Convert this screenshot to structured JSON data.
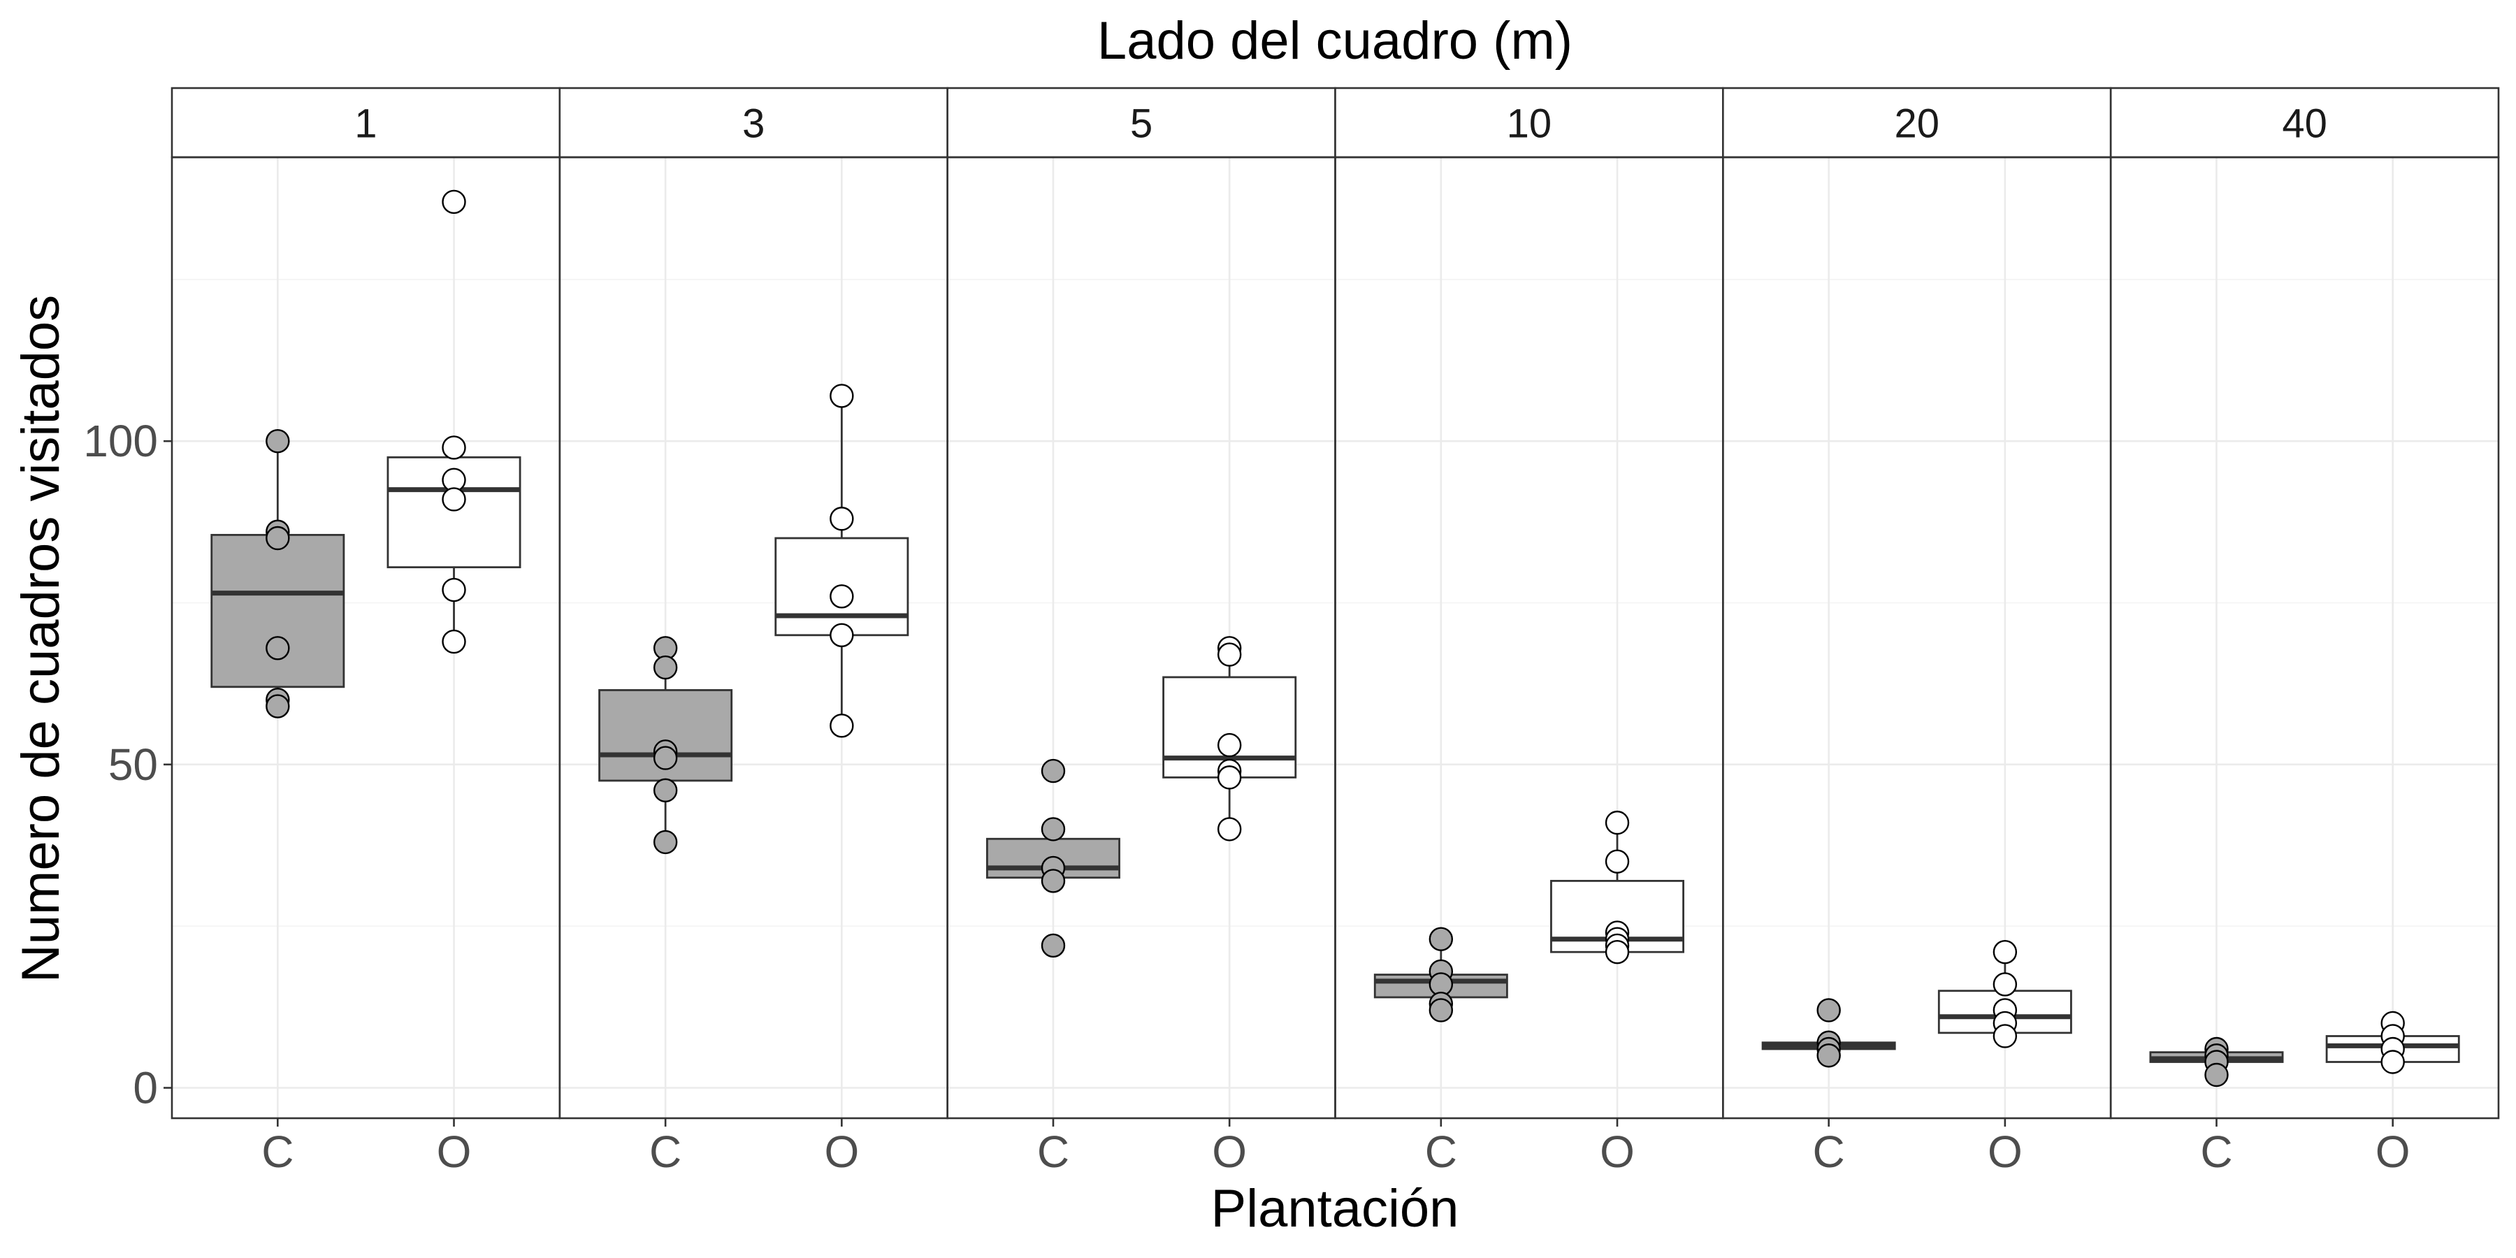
{
  "chart_data": {
    "type": "box",
    "title": "Lado del cuadro (m)",
    "xlabel": "Plantación",
    "ylabel": "Numero de cuadros visitados",
    "categories": [
      "C",
      "O"
    ],
    "yticks": [
      0,
      50,
      100
    ],
    "ylim": [
      -4.7,
      143.9
    ],
    "grid": true,
    "colors": {
      "C": "#A9A9A9",
      "O": "#FFFFFF",
      "outline": "#333333"
    },
    "panels": [
      {
        "label": "1",
        "groups": [
          {
            "category": "C",
            "box": {
              "ymin": 59,
              "lower": 62,
              "median": 76.5,
              "upper": 85.5,
              "ymax": 100
            },
            "points": [
              100,
              86,
              85,
              68,
              60,
              59
            ]
          },
          {
            "category": "O",
            "box": {
              "ymin": 69,
              "lower": 80.5,
              "median": 92.5,
              "upper": 97.5,
              "ymax": 99
            },
            "points": [
              137,
              99,
              94,
              91,
              77,
              69
            ]
          }
        ]
      },
      {
        "label": "3",
        "groups": [
          {
            "category": "C",
            "box": {
              "ymin": 38,
              "lower": 47.5,
              "median": 51.5,
              "upper": 61.5,
              "ymax": 68
            },
            "points": [
              68,
              65,
              52,
              51,
              46,
              38
            ]
          },
          {
            "category": "O",
            "box": {
              "ymin": 56,
              "lower": 70,
              "median": 73,
              "upper": 85,
              "ymax": 107
            },
            "points": [
              107,
              88,
              76,
              70,
              56
            ]
          }
        ]
      },
      {
        "label": "5",
        "groups": [
          {
            "category": "C",
            "box": {
              "ymin": 32,
              "lower": 32.5,
              "median": 34,
              "upper": 38.5,
              "ymax": 40
            },
            "points": [
              49,
              40,
              34,
              32,
              22
            ]
          },
          {
            "category": "O",
            "box": {
              "ymin": 40,
              "lower": 48,
              "median": 51,
              "upper": 63.5,
              "ymax": 68
            },
            "points": [
              68,
              67,
              53,
              49,
              48,
              40
            ]
          }
        ]
      },
      {
        "label": "10",
        "groups": [
          {
            "category": "C",
            "box": {
              "ymin": 12,
              "lower": 14,
              "median": 16.5,
              "upper": 17.5,
              "ymax": 23
            },
            "points": [
              23,
              18,
              16,
              13,
              12
            ]
          },
          {
            "category": "O",
            "box": {
              "ymin": 21,
              "lower": 21,
              "median": 23,
              "upper": 32,
              "ymax": 41
            },
            "points": [
              41,
              35,
              24,
              23,
              22,
              21
            ]
          }
        ]
      },
      {
        "label": "20",
        "groups": [
          {
            "category": "C",
            "box": {
              "ymin": 5,
              "lower": 6,
              "median": 6.5,
              "upper": 7,
              "ymax": 7
            },
            "points": [
              12,
              7,
              6,
              5
            ]
          },
          {
            "category": "O",
            "box": {
              "ymin": 8,
              "lower": 8.5,
              "median": 11,
              "upper": 15,
              "ymax": 21
            },
            "points": [
              21,
              16,
              12,
              10,
              8
            ]
          }
        ]
      },
      {
        "label": "40",
        "groups": [
          {
            "category": "C",
            "box": {
              "ymin": 2,
              "lower": 4,
              "median": 4.5,
              "upper": 5.5,
              "ymax": 6
            },
            "points": [
              6,
              5,
              4,
              2
            ]
          },
          {
            "category": "O",
            "box": {
              "ymin": 4,
              "lower": 4,
              "median": 6.5,
              "upper": 8,
              "ymax": 10
            },
            "points": [
              10,
              8,
              6,
              4
            ]
          }
        ]
      }
    ]
  }
}
